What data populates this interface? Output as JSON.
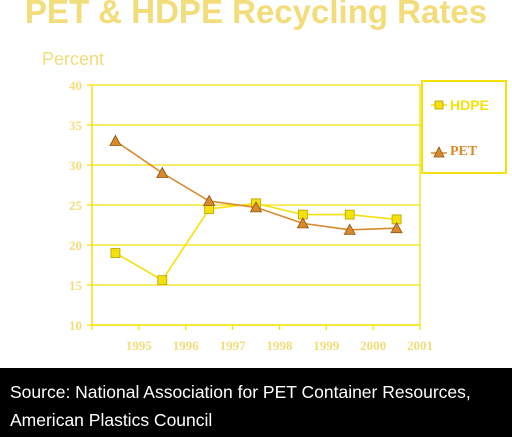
{
  "chart_data": {
    "type": "line",
    "title": "PET & HDPE Recycling Rates",
    "ylabel": "Percent",
    "xlabel": "",
    "categories": [
      "1995",
      "1996",
      "1997",
      "1998",
      "1999",
      "2000",
      "2001"
    ],
    "yticks": [
      "10",
      "15",
      "20",
      "25",
      "30",
      "35",
      "40"
    ],
    "ylim": [
      10,
      40
    ],
    "grid": true,
    "legend_position": "right",
    "series": [
      {
        "name": "HDPE",
        "marker": "square",
        "color": "#f5e10a",
        "values": [
          19.0,
          15.6,
          24.5,
          25.2,
          23.8,
          23.8,
          23.2
        ]
      },
      {
        "name": "PET",
        "marker": "triangle",
        "color": "#d9892a",
        "values": [
          33.0,
          29.0,
          25.5,
          24.7,
          22.7,
          21.9,
          22.1
        ]
      }
    ]
  },
  "source": {
    "line1": "Source:  National Association for PET Container Resources,",
    "line2": "American Plastics Council"
  }
}
